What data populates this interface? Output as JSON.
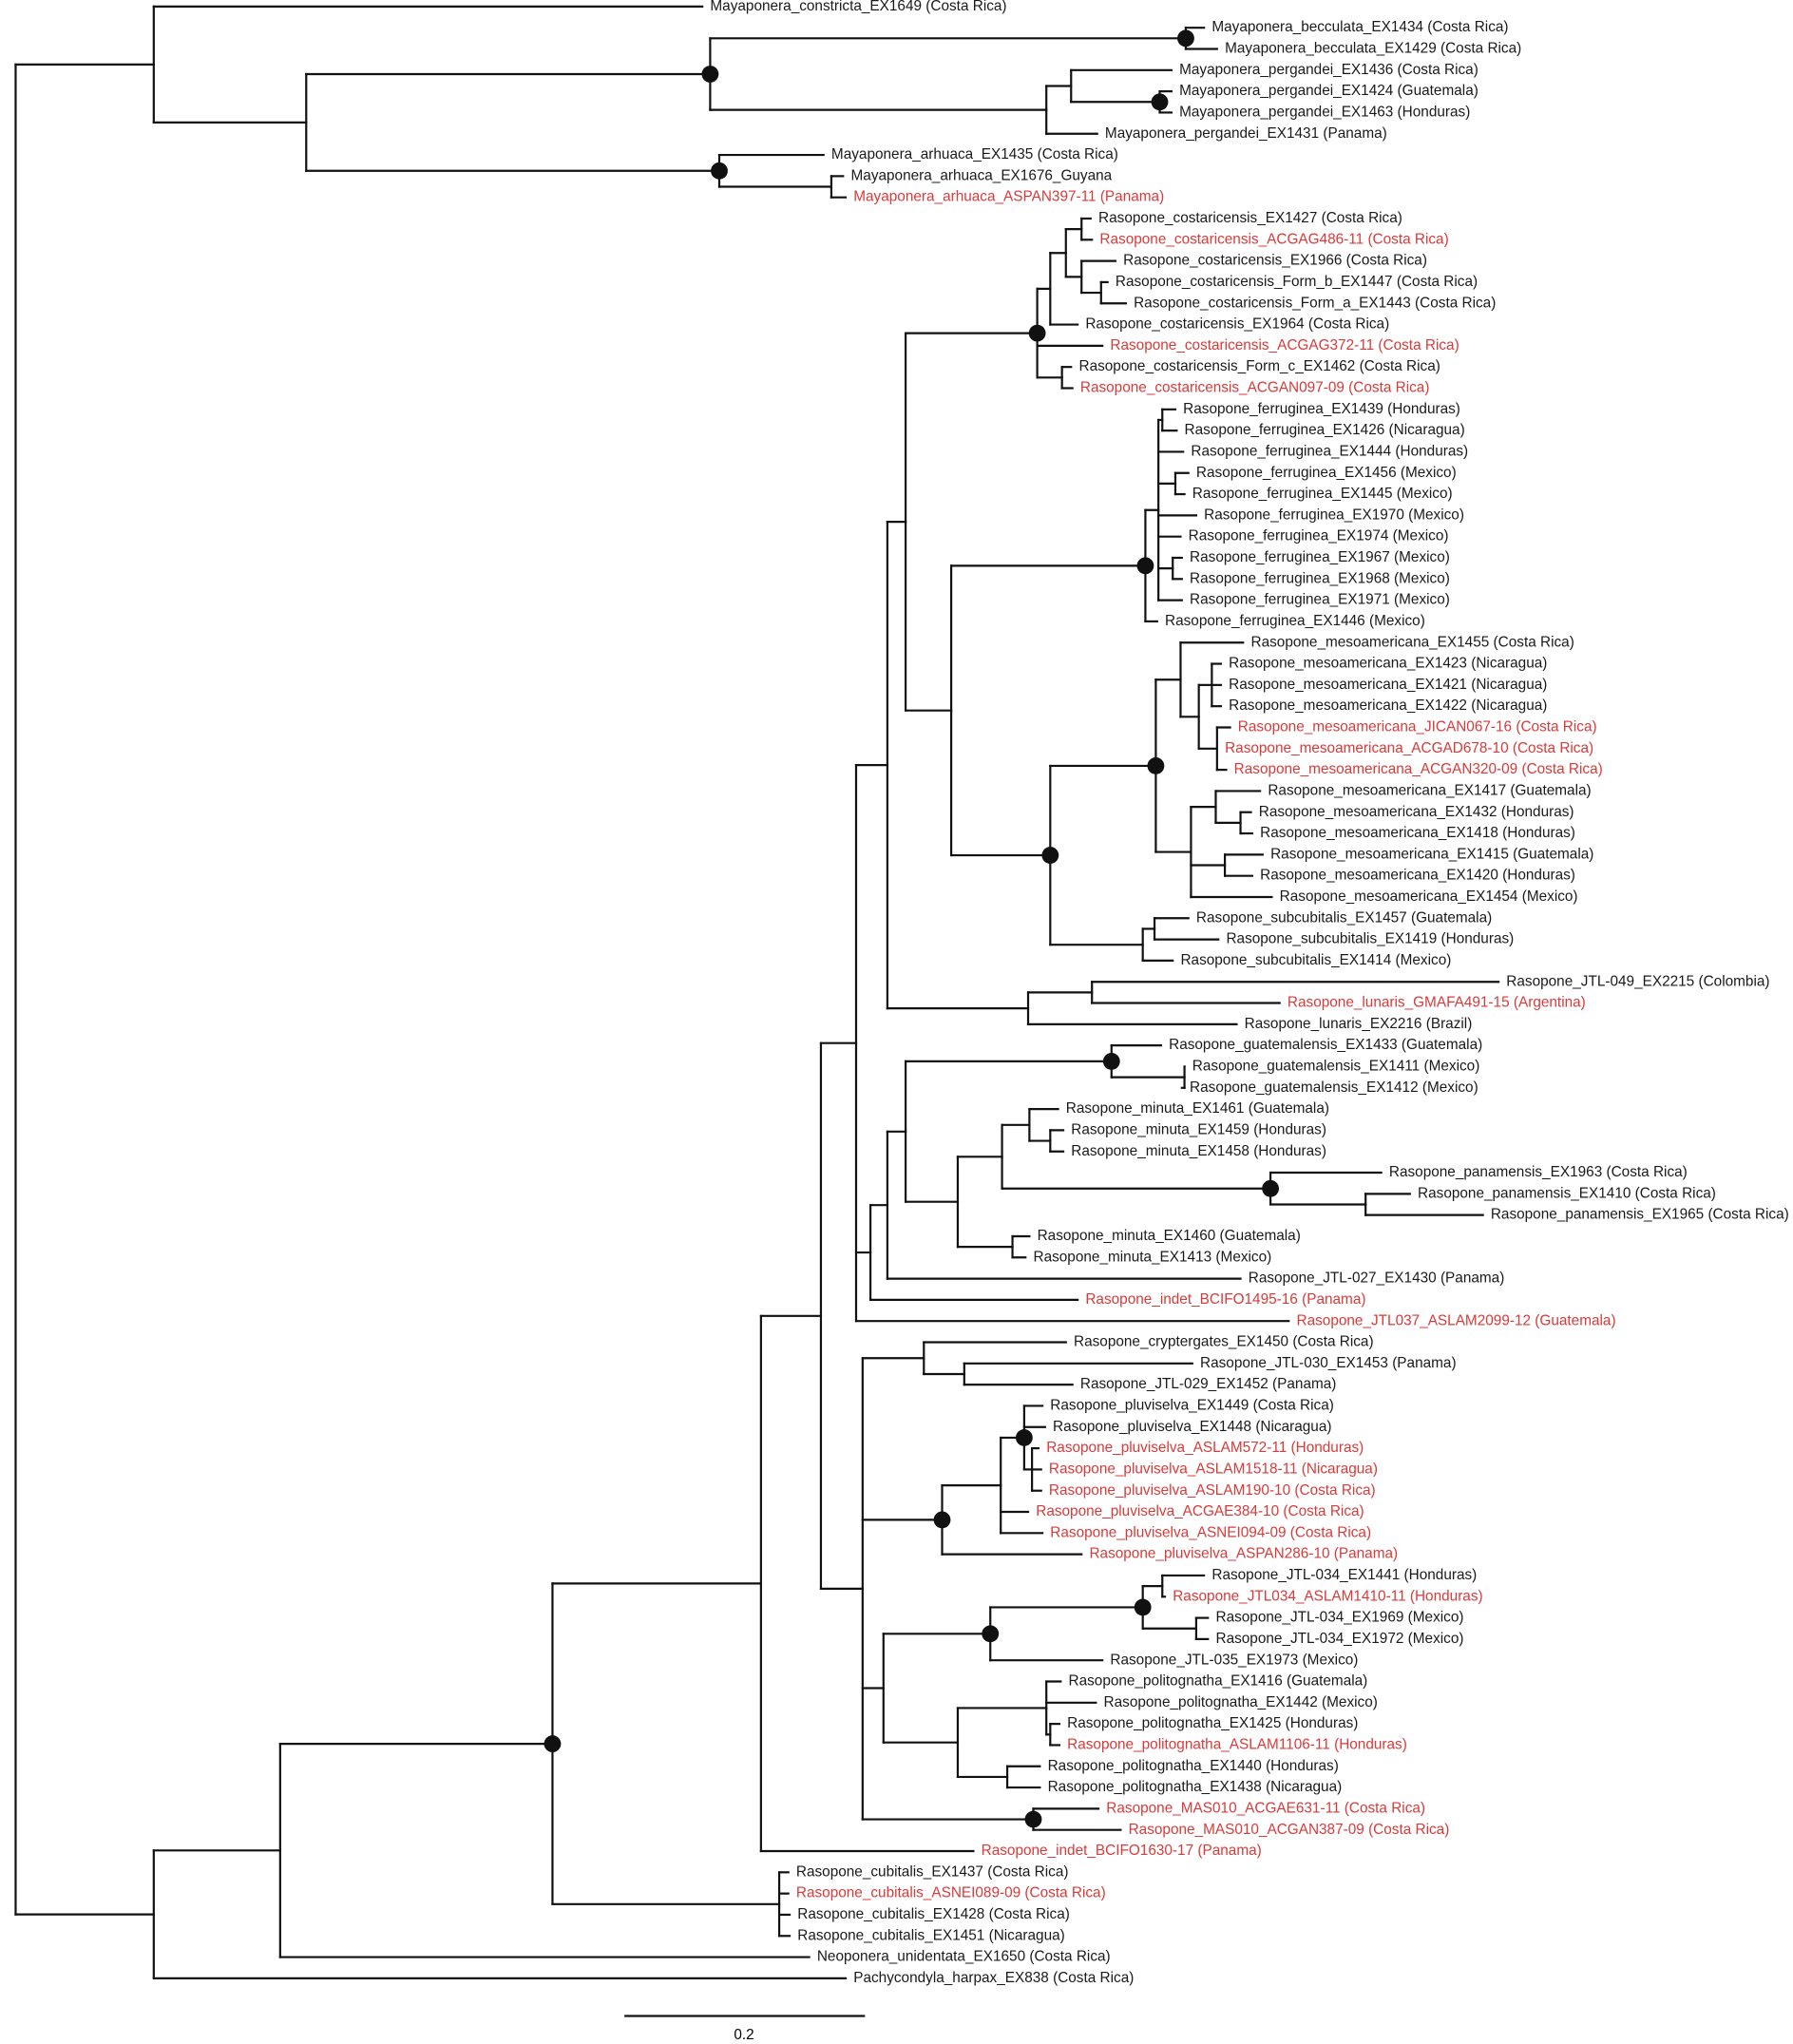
{
  "tips": [
    {
      "label": "Mayaponera_constricta_EX1649 (Costa Rica)",
      "color": "#1a1a1a"
    },
    {
      "label": "Mayaponera_becculata_EX1434 (Costa Rica)",
      "color": "#1a1a1a"
    },
    {
      "label": "Mayaponera_becculata_EX1429 (Costa Rica)",
      "color": "#1a1a1a"
    },
    {
      "label": "Mayaponera_pergandei_EX1436 (Costa Rica)",
      "color": "#1a1a1a"
    },
    {
      "label": "Mayaponera_pergandei_EX1424 (Guatemala)",
      "color": "#1a1a1a"
    },
    {
      "label": "Mayaponera_pergandei_EX1463 (Honduras)",
      "color": "#1a1a1a"
    },
    {
      "label": "Mayaponera_pergandei_EX1431 (Panama)",
      "color": "#1a1a1a"
    },
    {
      "label": "Mayaponera_arhuaca_EX1435 (Costa Rica)",
      "color": "#1a1a1a"
    },
    {
      "label": "Mayaponera_arhuaca_EX1676_Guyana",
      "color": "#1a1a1a"
    },
    {
      "label": "Mayaponera_arhuaca_ASPAN397-11 (Panama)",
      "color": "#d93a3a"
    },
    {
      "label": "Rasopone_costaricensis_EX1427 (Costa Rica)",
      "color": "#1a1a1a"
    },
    {
      "label": "Rasopone_costaricensis_ACGAG486-11 (Costa Rica)",
      "color": "#d93a3a"
    },
    {
      "label": "Rasopone_costaricensis_EX1966 (Costa Rica)",
      "color": "#1a1a1a"
    },
    {
      "label": "Rasopone_costaricensis_Form_b_EX1447 (Costa Rica)",
      "color": "#1a1a1a"
    },
    {
      "label": "Rasopone_costaricensis_Form_a_EX1443 (Costa Rica)",
      "color": "#1a1a1a"
    },
    {
      "label": "Rasopone_costaricensis_EX1964 (Costa Rica)",
      "color": "#1a1a1a"
    },
    {
      "label": "Rasopone_costaricensis_ACGAG372-11 (Costa Rica)",
      "color": "#d93a3a"
    },
    {
      "label": "Rasopone_costaricensis_Form_c_EX1462 (Costa Rica)",
      "color": "#1a1a1a"
    },
    {
      "label": "Rasopone_costaricensis_ACGAN097-09 (Costa Rica)",
      "color": "#d93a3a"
    },
    {
      "label": "Rasopone_ferruginea_EX1439 (Honduras)",
      "color": "#1a1a1a"
    },
    {
      "label": "Rasopone_ferruginea_EX1426 (Nicaragua)",
      "color": "#1a1a1a"
    },
    {
      "label": "Rasopone_ferruginea_EX1444 (Honduras)",
      "color": "#1a1a1a"
    },
    {
      "label": "Rasopone_ferruginea_EX1456 (Mexico)",
      "color": "#1a1a1a"
    },
    {
      "label": "Rasopone_ferruginea_EX1445 (Mexico)",
      "color": "#1a1a1a"
    },
    {
      "label": "Rasopone_ferruginea_EX1970 (Mexico)",
      "color": "#1a1a1a"
    },
    {
      "label": "Rasopone_ferruginea_EX1974 (Mexico)",
      "color": "#1a1a1a"
    },
    {
      "label": "Rasopone_ferruginea_EX1967 (Mexico)",
      "color": "#1a1a1a"
    },
    {
      "label": "Rasopone_ferruginea_EX1968 (Mexico)",
      "color": "#1a1a1a"
    },
    {
      "label": "Rasopone_ferruginea_EX1971 (Mexico)",
      "color": "#1a1a1a"
    },
    {
      "label": "Rasopone_ferruginea_EX1446 (Mexico)",
      "color": "#1a1a1a"
    },
    {
      "label": "Rasopone_mesoamericana_EX1455 (Costa Rica)",
      "color": "#1a1a1a"
    },
    {
      "label": "Rasopone_mesoamericana_EX1423 (Nicaragua)",
      "color": "#1a1a1a"
    },
    {
      "label": "Rasopone_mesoamericana_EX1421 (Nicaragua)",
      "color": "#1a1a1a"
    },
    {
      "label": "Rasopone_mesoamericana_EX1422 (Nicaragua)",
      "color": "#1a1a1a"
    },
    {
      "label": "Rasopone_mesoamericana_JICAN067-16 (Costa Rica)",
      "color": "#d93a3a"
    },
    {
      "label": "Rasopone_mesoamericana_ACGAD678-10 (Costa Rica)",
      "color": "#d93a3a"
    },
    {
      "label": "Rasopone_mesoamericana_ACGAN320-09 (Costa Rica)",
      "color": "#d93a3a"
    },
    {
      "label": "Rasopone_mesoamericana_EX1417 (Guatemala)",
      "color": "#1a1a1a"
    },
    {
      "label": "Rasopone_mesoamericana_EX1432 (Honduras)",
      "color": "#1a1a1a"
    },
    {
      "label": "Rasopone_mesoamericana_EX1418 (Honduras)",
      "color": "#1a1a1a"
    },
    {
      "label": "Rasopone_mesoamericana_EX1415 (Guatemala)",
      "color": "#1a1a1a"
    },
    {
      "label": "Rasopone_mesoamericana_EX1420 (Honduras)",
      "color": "#1a1a1a"
    },
    {
      "label": "Rasopone_mesoamericana_EX1454 (Mexico)",
      "color": "#1a1a1a"
    },
    {
      "label": "Rasopone_subcubitalis_EX1457 (Guatemala)",
      "color": "#1a1a1a"
    },
    {
      "label": "Rasopone_subcubitalis_EX1419 (Honduras)",
      "color": "#1a1a1a"
    },
    {
      "label": "Rasopone_subcubitalis_EX1414 (Mexico)",
      "color": "#1a1a1a"
    },
    {
      "label": "Rasopone_JTL-049_EX2215 (Colombia)",
      "color": "#1a1a1a"
    },
    {
      "label": "Rasopone_lunaris_GMAFA491-15 (Argentina)",
      "color": "#d93a3a"
    },
    {
      "label": "Rasopone_lunaris_EX2216 (Brazil)",
      "color": "#1a1a1a"
    },
    {
      "label": "Rasopone_guatemalensis_EX1433 (Guatemala)",
      "color": "#1a1a1a"
    },
    {
      "label": "Rasopone_guatemalensis_EX1411 (Mexico)",
      "color": "#1a1a1a"
    },
    {
      "label": "Rasopone_guatemalensis_EX1412 (Mexico)",
      "color": "#1a1a1a"
    },
    {
      "label": "Rasopone_minuta_EX1461 (Guatemala)",
      "color": "#1a1a1a"
    },
    {
      "label": "Rasopone_minuta_EX1459 (Honduras)",
      "color": "#1a1a1a"
    },
    {
      "label": "Rasopone_minuta_EX1458 (Honduras)",
      "color": "#1a1a1a"
    },
    {
      "label": "Rasopone_panamensis_EX1963 (Costa Rica)",
      "color": "#1a1a1a"
    },
    {
      "label": "Rasopone_panamensis_EX1410 (Costa Rica)",
      "color": "#1a1a1a"
    },
    {
      "label": "Rasopone_panamensis_EX1965 (Costa Rica)",
      "color": "#1a1a1a"
    },
    {
      "label": "Rasopone_minuta_EX1460 (Guatemala)",
      "color": "#1a1a1a"
    },
    {
      "label": "Rasopone_minuta_EX1413 (Mexico)",
      "color": "#1a1a1a"
    },
    {
      "label": "Rasopone_JTL-027_EX1430 (Panama)",
      "color": "#1a1a1a"
    },
    {
      "label": "Rasopone_indet_BCIFO1495-16 (Panama)",
      "color": "#d93a3a"
    },
    {
      "label": "Rasopone_JTL037_ASLAM2099-12 (Guatemala)",
      "color": "#d93a3a"
    },
    {
      "label": "Rasopone_cryptergates_EX1450 (Costa Rica)",
      "color": "#1a1a1a"
    },
    {
      "label": "Rasopone_JTL-030_EX1453 (Panama)",
      "color": "#1a1a1a"
    },
    {
      "label": "Rasopone_JTL-029_EX1452 (Panama)",
      "color": "#1a1a1a"
    },
    {
      "label": "Rasopone_pluviselva_EX1449 (Costa Rica)",
      "color": "#1a1a1a"
    },
    {
      "label": "Rasopone_pluviselva_EX1448 (Nicaragua)",
      "color": "#1a1a1a"
    },
    {
      "label": "Rasopone_pluviselva_ASLAM572-11 (Honduras)",
      "color": "#d93a3a"
    },
    {
      "label": "Rasopone_pluviselva_ASLAM1518-11 (Nicaragua)",
      "color": "#d93a3a"
    },
    {
      "label": "Rasopone_pluviselva_ASLAM190-10 (Costa Rica)",
      "color": "#d93a3a"
    },
    {
      "label": "Rasopone_pluviselva_ACGAE384-10 (Costa Rica)",
      "color": "#d93a3a"
    },
    {
      "label": "Rasopone_pluviselva_ASNEI094-09 (Costa Rica)",
      "color": "#d93a3a"
    },
    {
      "label": "Rasopone_pluviselva_ASPAN286-10 (Panama)",
      "color": "#d93a3a"
    },
    {
      "label": "Rasopone_JTL-034_EX1441 (Honduras)",
      "color": "#1a1a1a"
    },
    {
      "label": "Rasopone_JTL034_ASLAM1410-11 (Honduras)",
      "color": "#d93a3a"
    },
    {
      "label": "Rasopone_JTL-034_EX1969 (Mexico)",
      "color": "#1a1a1a"
    },
    {
      "label": "Rasopone_JTL-034_EX1972 (Mexico)",
      "color": "#1a1a1a"
    },
    {
      "label": "Rasopone_JTL-035_EX1973 (Mexico)",
      "color": "#1a1a1a"
    },
    {
      "label": "Rasopone_politognatha_EX1416 (Guatemala)",
      "color": "#1a1a1a"
    },
    {
      "label": "Rasopone_politognatha_EX1442 (Mexico)",
      "color": "#1a1a1a"
    },
    {
      "label": "Rasopone_politognatha_EX1425 (Honduras)",
      "color": "#1a1a1a"
    },
    {
      "label": "Rasopone_politognatha_ASLAM1106-11 (Honduras)",
      "color": "#d93a3a"
    },
    {
      "label": "Rasopone_politognatha_EX1440 (Honduras)",
      "color": "#1a1a1a"
    },
    {
      "label": "Rasopone_politognatha_EX1438 (Nicaragua)",
      "color": "#1a1a1a"
    },
    {
      "label": "Rasopone_MAS010_ACGAE631-11 (Costa Rica)",
      "color": "#d93a3a"
    },
    {
      "label": "Rasopone_MAS010_ACGAN387-09 (Costa Rica)",
      "color": "#d93a3a"
    },
    {
      "label": "Rasopone_indet_BCIFO1630-17 (Panama)",
      "color": "#d93a3a"
    },
    {
      "label": "Rasopone_cubitalis_EX1437 (Costa Rica)",
      "color": "#1a1a1a"
    },
    {
      "label": "Rasopone_cubitalis_ASNEI089-09 (Costa Rica)",
      "color": "#d93a3a"
    },
    {
      "label": "Rasopone_cubitalis_EX1428 (Costa Rica)",
      "color": "#1a1a1a"
    },
    {
      "label": "Rasopone_cubitalis_EX1451 (Nicaragua)",
      "color": "#1a1a1a"
    },
    {
      "label": "Neoponera_unidentata_EX1650 (Costa Rica)",
      "color": "#1a1a1a"
    },
    {
      "label": "Pachycondyla_harpax_EX838 (Costa Rica)",
      "color": "#1a1a1a"
    }
  ],
  "scale_bar": {
    "label": "0.2"
  }
}
